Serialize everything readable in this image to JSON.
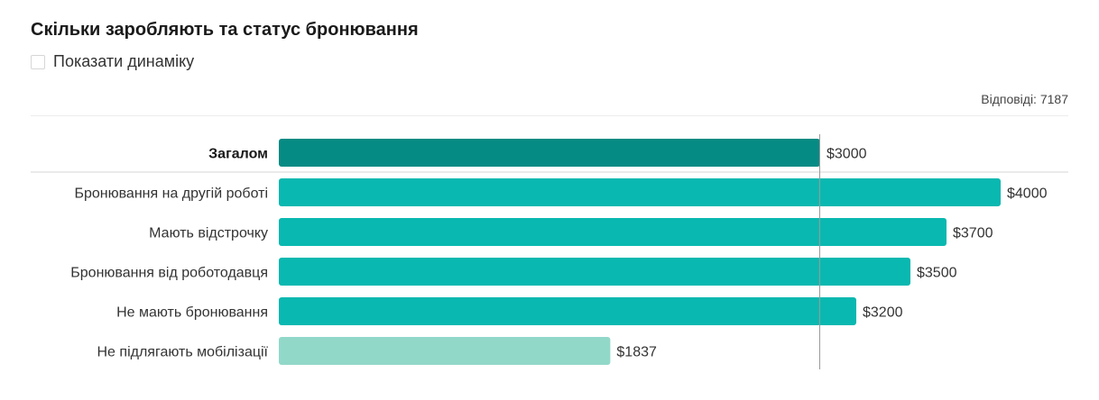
{
  "title": "Скільки заробляють та статус бронювання",
  "toggle": {
    "label": "Показати динаміку",
    "checked": false
  },
  "responses": "Відповіді: 7187",
  "colors": {
    "overall": "#068b84",
    "primary": "#09b8b0",
    "light": "#92d8c9",
    "reference_line": "#9a9a9a"
  },
  "chart_data": {
    "type": "bar",
    "orientation": "horizontal",
    "categories": [
      "Загалом",
      "Бронювання на другій роботі",
      "Мають відстрочку",
      "Бронювання від роботодавця",
      "Не мають бронювання",
      "Не підлягають мобілізації"
    ],
    "values": [
      3000,
      4000,
      3700,
      3500,
      3200,
      1837
    ],
    "value_labels": [
      "$3000",
      "$4000",
      "$3700",
      "$3500",
      "$3200",
      "$1837"
    ],
    "reference_value": 3000,
    "xlim": [
      0,
      4000
    ]
  }
}
